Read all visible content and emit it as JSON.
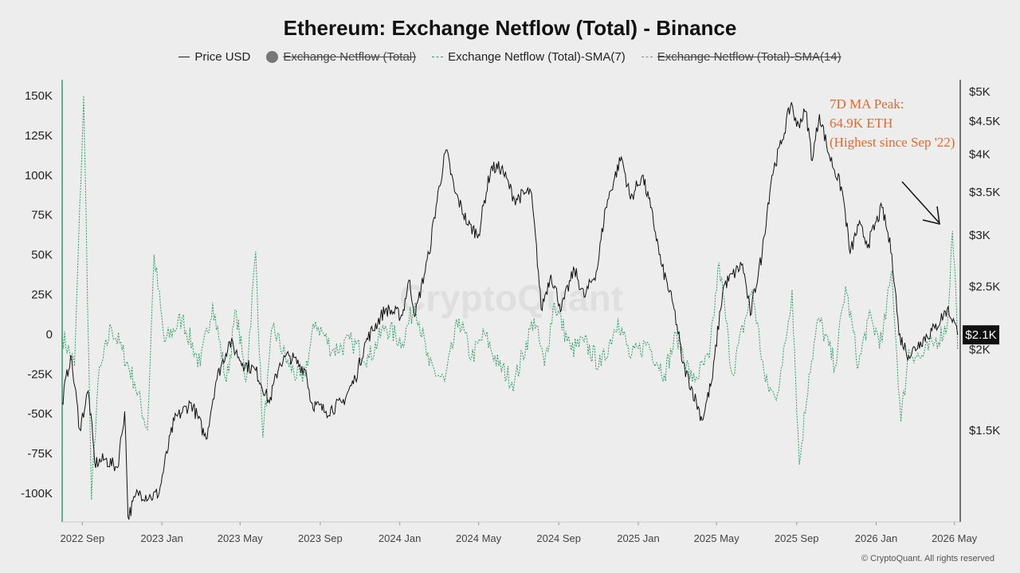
{
  "chart_data": {
    "type": "line",
    "title": "Ethereum: Exchange Netflow (Total) - Binance",
    "legend_placement": "top",
    "legend": [
      {
        "name": "Price USD",
        "style": "solid",
        "color": "#222222",
        "active": true
      },
      {
        "name": "Exchange Netflow (Total)",
        "style": "dot",
        "color": "#777777",
        "active": false
      },
      {
        "name": "Exchange Netflow (Total)-SMA(7)",
        "style": "dashed",
        "color": "#2e9e6a",
        "active": true
      },
      {
        "name": "Exchange Netflow (Total)-SMA(14)",
        "style": "dashed",
        "color": "#888888",
        "active": false
      }
    ],
    "x_ticks": [
      "2022 Sep",
      "2023 Jan",
      "2023 May",
      "2023 Sep",
      "2024 Jan",
      "2024 May",
      "2024 Sep",
      "2025 Jan",
      "2025 May",
      "2025 Sep",
      "2026 Jan",
      "2026 May"
    ],
    "x_range": [
      "2022-08-01",
      "2026-05-10"
    ],
    "y_left": {
      "ticks": [
        150000,
        125000,
        100000,
        75000,
        50000,
        25000,
        0,
        -25000,
        -50000,
        -75000,
        -100000
      ],
      "tick_labels": [
        "150K",
        "125K",
        "100K",
        "75K",
        "50K",
        "25K",
        "0",
        "-25K",
        "-50K",
        "-75K",
        "-100K"
      ],
      "range": [
        -118000,
        160000
      ]
    },
    "y_right": {
      "scale": "log",
      "tick_values": [
        5000,
        4500,
        4000,
        3500,
        3000,
        2500,
        2000,
        1500
      ],
      "tick_labels": [
        "$5K",
        "$4.5K",
        "$4K",
        "$3.5K",
        "$3K",
        "$2.5K",
        "$2K",
        "$1.5K"
      ],
      "range": [
        1080,
        5200
      ],
      "current_label": "$2.1K",
      "current_value": 2100
    },
    "grid": false,
    "series": [
      {
        "name": "Price USD",
        "axis": "right",
        "points": [
          [
            "2022-08-01",
            1650
          ],
          [
            "2022-08-14",
            1950
          ],
          [
            "2022-08-28",
            1500
          ],
          [
            "2022-09-10",
            1720
          ],
          [
            "2022-09-20",
            1330
          ],
          [
            "2022-10-05",
            1350
          ],
          [
            "2022-10-25",
            1310
          ],
          [
            "2022-11-05",
            1600
          ],
          [
            "2022-11-10",
            1100
          ],
          [
            "2022-11-25",
            1200
          ],
          [
            "2022-12-15",
            1180
          ],
          [
            "2022-12-28",
            1200
          ],
          [
            "2023-01-20",
            1550
          ],
          [
            "2023-02-15",
            1650
          ],
          [
            "2023-03-10",
            1450
          ],
          [
            "2023-03-25",
            1780
          ],
          [
            "2023-04-15",
            2050
          ],
          [
            "2023-05-05",
            1900
          ],
          [
            "2023-05-25",
            1850
          ],
          [
            "2023-06-15",
            1650
          ],
          [
            "2023-07-01",
            1900
          ],
          [
            "2023-07-15",
            1950
          ],
          [
            "2023-08-10",
            1850
          ],
          [
            "2023-08-18",
            1650
          ],
          [
            "2023-09-10",
            1600
          ],
          [
            "2023-10-05",
            1650
          ],
          [
            "2023-10-25",
            1800
          ],
          [
            "2023-11-10",
            2050
          ],
          [
            "2023-12-10",
            2300
          ],
          [
            "2024-01-05",
            2250
          ],
          [
            "2024-01-15",
            2550
          ],
          [
            "2024-01-25",
            2250
          ],
          [
            "2024-02-15",
            2800
          ],
          [
            "2024-03-12",
            4050
          ],
          [
            "2024-03-25",
            3500
          ],
          [
            "2024-04-15",
            3100
          ],
          [
            "2024-05-01",
            3000
          ],
          [
            "2024-05-20",
            3800
          ],
          [
            "2024-06-05",
            3800
          ],
          [
            "2024-06-25",
            3400
          ],
          [
            "2024-07-20",
            3500
          ],
          [
            "2024-08-05",
            2300
          ],
          [
            "2024-08-20",
            2600
          ],
          [
            "2024-09-05",
            2300
          ],
          [
            "2024-09-25",
            2650
          ],
          [
            "2024-10-10",
            2400
          ],
          [
            "2024-10-30",
            2650
          ],
          [
            "2024-11-12",
            3300
          ],
          [
            "2024-12-06",
            3950
          ],
          [
            "2024-12-20",
            3400
          ],
          [
            "2025-01-07",
            3700
          ],
          [
            "2025-01-20",
            3300
          ],
          [
            "2025-02-05",
            2700
          ],
          [
            "2025-02-25",
            2300
          ],
          [
            "2025-03-10",
            1900
          ],
          [
            "2025-04-09",
            1550
          ],
          [
            "2025-04-25",
            1800
          ],
          [
            "2025-05-12",
            2500
          ],
          [
            "2025-06-10",
            2700
          ],
          [
            "2025-06-22",
            2250
          ],
          [
            "2025-07-10",
            2800
          ],
          [
            "2025-07-25",
            3700
          ],
          [
            "2025-08-10",
            4200
          ],
          [
            "2025-08-24",
            4800
          ],
          [
            "2025-09-01",
            4400
          ],
          [
            "2025-09-15",
            4650
          ],
          [
            "2025-09-25",
            3900
          ],
          [
            "2025-10-06",
            4600
          ],
          [
            "2025-10-20",
            4000
          ],
          [
            "2025-11-10",
            3500
          ],
          [
            "2025-11-22",
            2800
          ],
          [
            "2025-12-05",
            3100
          ],
          [
            "2025-12-20",
            2900
          ],
          [
            "2026-01-10",
            3300
          ],
          [
            "2026-01-25",
            2800
          ],
          [
            "2026-02-05",
            2100
          ],
          [
            "2026-02-20",
            1950
          ],
          [
            "2026-03-10",
            2050
          ],
          [
            "2026-04-01",
            2150
          ],
          [
            "2026-04-20",
            2300
          ],
          [
            "2026-05-01",
            2200
          ],
          [
            "2026-05-06",
            2100
          ]
        ]
      },
      {
        "name": "Exchange Netflow (Total)-SMA(7)",
        "axis": "left",
        "points": [
          [
            "2022-08-01",
            0
          ],
          [
            "2022-08-20",
            -20000
          ],
          [
            "2022-09-03",
            150000
          ],
          [
            "2022-09-15",
            -104000
          ],
          [
            "2022-09-25",
            -30000
          ],
          [
            "2022-10-15",
            5000
          ],
          [
            "2022-11-01",
            -10000
          ],
          [
            "2022-11-20",
            -30000
          ],
          [
            "2022-12-10",
            -60000
          ],
          [
            "2022-12-20",
            50000
          ],
          [
            "2023-01-05",
            -5000
          ],
          [
            "2023-02-01",
            10000
          ],
          [
            "2023-03-01",
            -20000
          ],
          [
            "2023-03-20",
            20000
          ],
          [
            "2023-04-10",
            -30000
          ],
          [
            "2023-04-25",
            15000
          ],
          [
            "2023-05-10",
            -30000
          ],
          [
            "2023-05-25",
            52000
          ],
          [
            "2023-06-05",
            -65000
          ],
          [
            "2023-06-20",
            5000
          ],
          [
            "2023-07-15",
            -20000
          ],
          [
            "2023-08-05",
            -30000
          ],
          [
            "2023-08-25",
            8000
          ],
          [
            "2023-09-20",
            -10000
          ],
          [
            "2023-10-20",
            -5000
          ],
          [
            "2023-11-15",
            -15000
          ],
          [
            "2023-12-10",
            5000
          ],
          [
            "2024-01-05",
            -5000
          ],
          [
            "2024-01-25",
            20000
          ],
          [
            "2024-02-15",
            -20000
          ],
          [
            "2024-03-10",
            -30000
          ],
          [
            "2024-04-01",
            10000
          ],
          [
            "2024-04-20",
            -15000
          ],
          [
            "2024-05-10",
            0
          ],
          [
            "2024-06-01",
            -20000
          ],
          [
            "2024-06-25",
            -30000
          ],
          [
            "2024-07-25",
            10000
          ],
          [
            "2024-08-10",
            -20000
          ],
          [
            "2024-08-25",
            20000
          ],
          [
            "2024-09-20",
            -10000
          ],
          [
            "2024-10-10",
            -5000
          ],
          [
            "2024-11-05",
            -20000
          ],
          [
            "2024-12-01",
            10000
          ],
          [
            "2024-12-20",
            -15000
          ],
          [
            "2025-01-15",
            -5000
          ],
          [
            "2025-02-10",
            -25000
          ],
          [
            "2025-03-01",
            0
          ],
          [
            "2025-03-25",
            -30000
          ],
          [
            "2025-04-20",
            -15000
          ],
          [
            "2025-05-05",
            45000
          ],
          [
            "2025-05-25",
            -25000
          ],
          [
            "2025-06-25",
            28000
          ],
          [
            "2025-07-15",
            -30000
          ],
          [
            "2025-07-30",
            -40000
          ],
          [
            "2025-08-10",
            -20000
          ],
          [
            "2025-08-25",
            28000
          ],
          [
            "2025-09-05",
            -82000
          ],
          [
            "2025-09-20",
            -25000
          ],
          [
            "2025-10-05",
            10000
          ],
          [
            "2025-10-30",
            -20000
          ],
          [
            "2025-11-15",
            30000
          ],
          [
            "2025-12-05",
            -20000
          ],
          [
            "2025-12-20",
            10000
          ],
          [
            "2026-01-10",
            -5000
          ],
          [
            "2026-01-25",
            40000
          ],
          [
            "2026-02-08",
            -55000
          ],
          [
            "2026-02-20",
            -10000
          ],
          [
            "2026-03-10",
            -15000
          ],
          [
            "2026-04-01",
            -5000
          ],
          [
            "2026-04-20",
            5000
          ],
          [
            "2026-04-28",
            64900
          ],
          [
            "2026-05-03",
            30000
          ],
          [
            "2026-05-06",
            -10000
          ]
        ]
      }
    ],
    "annotations": [
      {
        "text_lines": [
          "7D MA Peak:",
          "64.9K ETH",
          "(Highest since Sep '22)"
        ],
        "color": "#e06a2c",
        "type": "text"
      },
      {
        "type": "arrow",
        "color": "#111111",
        "points_to": [
          "2026-04-28",
          64900
        ]
      }
    ]
  },
  "watermark": "CryptoQuant",
  "copyright": "© CryptoQuant. All rights reserved"
}
